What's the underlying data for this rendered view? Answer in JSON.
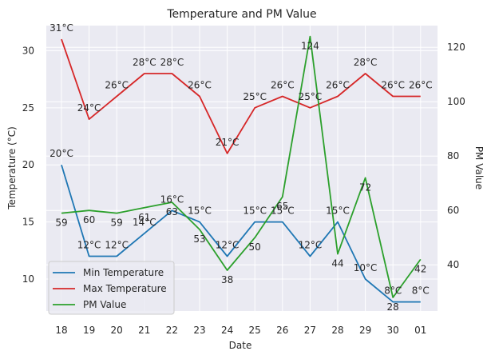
{
  "chart_data": {
    "type": "line",
    "title": "Temperature and PM Value",
    "xlabel": "Date",
    "ylabel_left": "Temperature (°C)",
    "ylabel_right": "PM Value",
    "categories": [
      "18",
      "19",
      "20",
      "21",
      "22",
      "23",
      "24",
      "25",
      "26",
      "27",
      "28",
      "29",
      "30",
      "01"
    ],
    "ylim_left": [
      7.2,
      32.2
    ],
    "yticks_left": [
      10,
      15,
      20,
      25,
      30
    ],
    "ylim_right": [
      23,
      128
    ],
    "yticks_right": [
      40,
      60,
      80,
      100,
      120
    ],
    "grid": true,
    "legend_position": "lower-left",
    "series": [
      {
        "name": "Min Temperature",
        "axis": "left",
        "color": "#1f77b4",
        "values": [
          20,
          12,
          12,
          14,
          16,
          15,
          12,
          15,
          15,
          12,
          15,
          10,
          8,
          8
        ],
        "labels": [
          "20°C",
          "12°C",
          "12°C",
          "14°C",
          "16°C",
          "15°C",
          "12°C",
          "15°C",
          "15°C",
          "12°C",
          "15°C",
          "10°C",
          "8°C",
          "8°C"
        ]
      },
      {
        "name": "Max Temperature",
        "axis": "left",
        "color": "#d62728",
        "values": [
          31,
          24,
          26,
          28,
          28,
          26,
          21,
          25,
          26,
          25,
          26,
          28,
          26,
          26
        ],
        "labels": [
          "31°C",
          "24°C",
          "26°C",
          "28°C",
          "28°C",
          "26°C",
          "21°C",
          "25°C",
          "26°C",
          "25°C",
          "26°C",
          "28°C",
          "26°C",
          "26°C"
        ]
      },
      {
        "name": "PM Value",
        "axis": "right",
        "color": "#2ca02c",
        "values": [
          59,
          60,
          59,
          61,
          63,
          53,
          38,
          50,
          65,
          124,
          44,
          72,
          28,
          42
        ],
        "labels": [
          "59",
          "60",
          "59",
          "61",
          "63",
          "53",
          "38",
          "50",
          "65",
          "124",
          "44",
          "72",
          "28",
          "42"
        ]
      }
    ]
  }
}
